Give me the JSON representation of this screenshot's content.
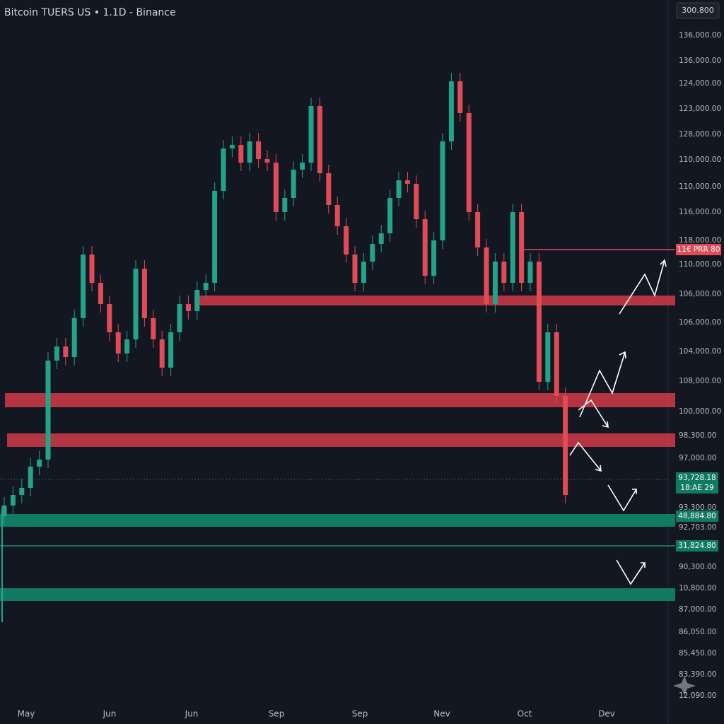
{
  "chart_data": {
    "type": "candlestick",
    "title": "Bitcoin TUERS US • 1.1D - Binance",
    "badge": "300.800",
    "up_color": "#22a38a",
    "down_color": "#e04b55",
    "ylim": [
      80000,
      140000
    ],
    "candles": [
      [
        96200,
        97820,
        95480,
        97100
      ],
      [
        97100,
        98720,
        96380,
        98000
      ],
      [
        98000,
        99320,
        97280,
        98600
      ],
      [
        98600,
        101120,
        97880,
        100400
      ],
      [
        100400,
        101720,
        99680,
        101000
      ],
      [
        101000,
        110120,
        100280,
        109400
      ],
      [
        109400,
        111320,
        108680,
        110600
      ],
      [
        110600,
        111320,
        108980,
        109700
      ],
      [
        109700,
        113720,
        108980,
        113000
      ],
      [
        113000,
        119120,
        112280,
        118400
      ],
      [
        118400,
        119120,
        115280,
        116000
      ],
      [
        116000,
        116720,
        113480,
        114200
      ],
      [
        114200,
        114920,
        111080,
        111800
      ],
      [
        111800,
        112520,
        109280,
        110000
      ],
      [
        110000,
        111920,
        109280,
        111200
      ],
      [
        111200,
        117920,
        110480,
        117200
      ],
      [
        117200,
        117920,
        112280,
        113000
      ],
      [
        113000,
        113720,
        110480,
        111200
      ],
      [
        111200,
        111920,
        108080,
        108800
      ],
      [
        108800,
        112520,
        108080,
        111800
      ],
      [
        111800,
        114920,
        111080,
        114200
      ],
      [
        114200,
        114920,
        112880,
        113600
      ],
      [
        113600,
        116120,
        112880,
        115400
      ],
      [
        115400,
        116720,
        114680,
        116000
      ],
      [
        116000,
        124520,
        115280,
        123800
      ],
      [
        123800,
        128120,
        123080,
        127400
      ],
      [
        127400,
        128420,
        126680,
        127700
      ],
      [
        127700,
        128420,
        125480,
        126200
      ],
      [
        126200,
        128720,
        125480,
        128000
      ],
      [
        128000,
        128720,
        125780,
        126500
      ],
      [
        126500,
        127220,
        125480,
        126200
      ],
      [
        126200,
        126920,
        121280,
        122000
      ],
      [
        122000,
        123920,
        121280,
        123200
      ],
      [
        123200,
        126320,
        122480,
        125600
      ],
      [
        125600,
        126920,
        124880,
        126200
      ],
      [
        126200,
        131720,
        125480,
        131000
      ],
      [
        131000,
        131720,
        124580,
        125300
      ],
      [
        125300,
        126020,
        121880,
        122600
      ],
      [
        122600,
        123320,
        120080,
        120800
      ],
      [
        120800,
        121520,
        117680,
        118400
      ],
      [
        118400,
        119120,
        115280,
        116000
      ],
      [
        116000,
        118520,
        115280,
        117800
      ],
      [
        117800,
        120020,
        117080,
        119300
      ],
      [
        119300,
        120920,
        118580,
        120200
      ],
      [
        120200,
        123920,
        119480,
        123200
      ],
      [
        123200,
        125420,
        122480,
        124700
      ],
      [
        124700,
        125420,
        123680,
        124400
      ],
      [
        124400,
        125120,
        120680,
        121400
      ],
      [
        121400,
        122120,
        115880,
        116600
      ],
      [
        116600,
        120320,
        115880,
        119600
      ],
      [
        119600,
        128720,
        118880,
        128000
      ],
      [
        128000,
        133820,
        127280,
        133100
      ],
      [
        133100,
        133820,
        129680,
        130400
      ],
      [
        130400,
        131120,
        121280,
        122000
      ],
      [
        122000,
        122720,
        118280,
        119000
      ],
      [
        119000,
        119720,
        113480,
        114200
      ],
      [
        114200,
        118520,
        113480,
        117800
      ],
      [
        117800,
        118520,
        115280,
        116000
      ],
      [
        116000,
        122720,
        115280,
        122000
      ],
      [
        122000,
        122720,
        115280,
        116000
      ],
      [
        116000,
        118520,
        115280,
        117800
      ],
      [
        117800,
        118520,
        106880,
        107600
      ],
      [
        107600,
        112520,
        106880,
        111800
      ],
      [
        111800,
        112520,
        105680,
        106400
      ],
      [
        106400,
        107120,
        97280,
        98000
      ]
    ],
    "price_axis_labels": [
      "136,000.00",
      "136,000.00",
      "124,000.00",
      "123,000.00",
      "128,000.00",
      "110,000.00",
      "110,000.00",
      "116,000.00",
      "118,000.00",
      "110,000.00",
      "106,000.00",
      "106,000.00",
      "104,000.00",
      "108,000.00",
      "100,000.00",
      "98,300.00",
      "97,000.00",
      "93,300.00",
      "92,703.00",
      "90,300.00",
      "10,800.00",
      "87,000.00",
      "86,050.00",
      "85,450.00",
      "83,390.00",
      "12,090.00"
    ],
    "time_axis_labels": [
      "May",
      "Jun",
      "Jun",
      "Sep",
      "Sep",
      "Nev",
      "Oct",
      "Dev"
    ],
    "price_tags": [
      "11€ PRR 80",
      "93,728.18",
      "18:AE 29",
      "48,884.80",
      "31,824.80"
    ]
  }
}
